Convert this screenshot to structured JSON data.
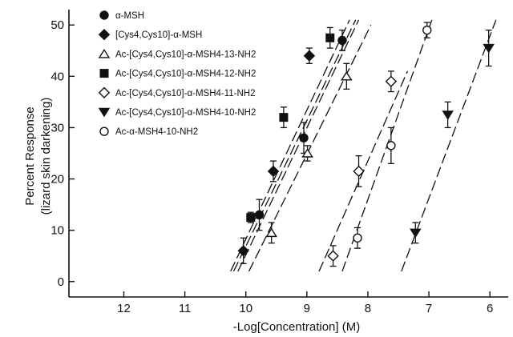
{
  "chart_data": {
    "type": "scatter",
    "title": "",
    "xlabel": "-Log[Concentration] (M)",
    "ylabel_line1": "Percent Response",
    "ylabel_line2": "(lizard skin darkening)",
    "x_reversed": true,
    "xlim": [
      12.9,
      5.7
    ],
    "ylim": [
      -3,
      53
    ],
    "x_ticks": [
      12,
      11,
      10,
      9,
      8,
      7,
      6
    ],
    "y_ticks": [
      0,
      10,
      20,
      30,
      40,
      50
    ],
    "grid": false,
    "legend_position": "top-left",
    "series": [
      {
        "name": "α-MSH",
        "marker": "filled-circle",
        "points": [
          [
            9.78,
            13,
            3
          ],
          [
            9.05,
            28,
            3
          ],
          [
            8.42,
            47,
            2
          ]
        ],
        "fit": [
          [
            10.13,
            2
          ],
          [
            8.15,
            51
          ]
        ]
      },
      {
        "name": "[Cys4,Cys10]-α-MSH",
        "marker": "filled-diamond",
        "points": [
          [
            10.04,
            6,
            2.5
          ],
          [
            9.55,
            21.5,
            2
          ],
          [
            8.96,
            44,
            1.5
          ]
        ],
        "fit": [
          [
            10.25,
            2
          ],
          [
            8.3,
            51
          ]
        ]
      },
      {
        "name": "Ac-[Cys4,Cys10]-α-MSH4-13-NH2",
        "marker": "open-triangle",
        "points": [
          [
            9.58,
            9.5,
            2
          ],
          [
            8.99,
            25,
            1.5
          ],
          [
            8.35,
            40,
            2.5
          ]
        ],
        "fit": [
          [
            9.95,
            2
          ],
          [
            7.95,
            50
          ]
        ]
      },
      {
        "name": "Ac-[Cys4,Cys10]-α-MSH4-12-NH2",
        "marker": "filled-square",
        "points": [
          [
            9.92,
            12.5,
            1
          ],
          [
            9.38,
            32,
            2
          ],
          [
            8.62,
            47.5,
            2
          ]
        ],
        "fit": [
          [
            10.2,
            2
          ],
          [
            8.2,
            51
          ]
        ]
      },
      {
        "name": "Ac-[Cys4,Cys10]-α-MSH4-11-NH2",
        "marker": "open-diamond",
        "points": [
          [
            8.57,
            5,
            2
          ],
          [
            8.15,
            21.5,
            3
          ],
          [
            7.62,
            39,
            2
          ]
        ],
        "fit": [
          [
            8.8,
            2
          ],
          [
            7.35,
            41
          ]
        ]
      },
      {
        "name": "Ac-[Cys4,Cys10]-α-MSH4-10-NH2",
        "marker": "filled-triangle-down",
        "points": [
          [
            7.22,
            9.5,
            2
          ],
          [
            6.69,
            32.5,
            2.5
          ],
          [
            6.02,
            45.5,
            3.5
          ]
        ],
        "fit": [
          [
            7.45,
            2
          ],
          [
            5.9,
            51
          ]
        ]
      },
      {
        "name": "Ac-α-MSH4-10-NH2",
        "marker": "open-circle",
        "points": [
          [
            8.17,
            8.5,
            2
          ],
          [
            7.62,
            26.5,
            3.5
          ],
          [
            7.03,
            49,
            1.5
          ]
        ],
        "fit": [
          [
            8.42,
            2
          ],
          [
            6.95,
            51
          ]
        ]
      }
    ]
  }
}
